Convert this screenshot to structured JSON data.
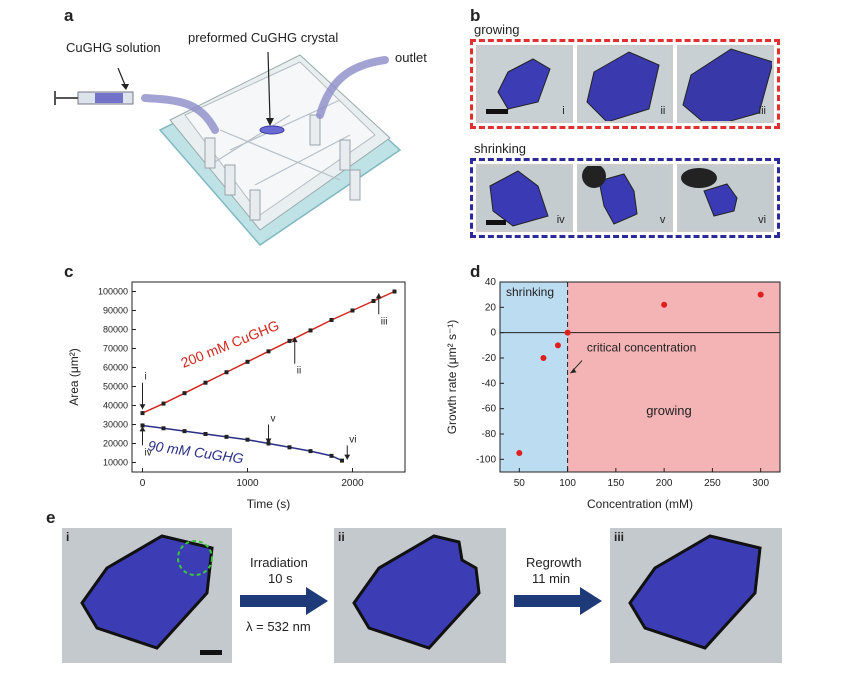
{
  "panels": {
    "a": {
      "label": "a",
      "solution_label": "CuGHG solution",
      "crystal_label": "preformed CuGHG crystal",
      "outlet_label": "outlet"
    },
    "b": {
      "label": "b",
      "growing_label": "growing",
      "shrinking_label": "shrinking",
      "growing_frames": [
        "i",
        "ii",
        "iii"
      ],
      "shrinking_frames": [
        "iv",
        "v",
        "vi"
      ],
      "frame_color_growing": "#e03030",
      "frame_color_shrinking": "#2a2a9a"
    },
    "c": {
      "label": "c"
    },
    "d": {
      "label": "d",
      "shrinking_region": "shrinking",
      "growing_region": "growing",
      "annotation": "critical concentration"
    },
    "e": {
      "label": "e",
      "frames": [
        "i",
        "ii",
        "iii"
      ],
      "step1": {
        "line1": "Irradiation",
        "line2": "10 s",
        "line3": "λ = 532 nm"
      },
      "step2": {
        "line1": "Regrowth",
        "line2": "11 min"
      }
    }
  },
  "colors": {
    "red_series": "#d0281e",
    "blue_series": "#2a2f86",
    "shrinking_bg": "#bcdcf2",
    "growing_bg": "#f4b3b5",
    "arrow": "#1f3a78",
    "crystal": "#3c3cb4"
  },
  "chart_data": [
    {
      "type": "scatter",
      "xlabel": "Time (s)",
      "ylabel": "Area (μm²)",
      "xlim": [
        -100,
        2500
      ],
      "ylim": [
        5000,
        105000
      ],
      "xticks": [
        0,
        1000,
        2000
      ],
      "yticks": [
        10000,
        20000,
        30000,
        40000,
        50000,
        60000,
        70000,
        80000,
        90000,
        100000
      ],
      "series": [
        {
          "name": "200 mM CuGHG",
          "x": [
            0,
            200,
            400,
            600,
            800,
            1000,
            1200,
            1400,
            1600,
            1800,
            2000,
            2200,
            2400
          ],
          "values": [
            36000,
            41000,
            46500,
            52000,
            57500,
            63000,
            68500,
            74000,
            79500,
            85000,
            90000,
            95000,
            100000
          ]
        },
        {
          "name": "90 mM CuGHG",
          "x": [
            0,
            200,
            400,
            600,
            800,
            1000,
            1200,
            1400,
            1600,
            1800,
            1900
          ],
          "values": [
            29500,
            28000,
            26500,
            25000,
            23500,
            22000,
            20000,
            18000,
            16000,
            13500,
            11000
          ]
        }
      ],
      "annotations": [
        {
          "text": "i",
          "x": 0
        },
        {
          "text": "ii",
          "x": 1450
        },
        {
          "text": "iii",
          "x": 2250
        },
        {
          "text": "iv",
          "x": 0
        },
        {
          "text": "v",
          "x": 1200
        },
        {
          "text": "vi",
          "x": 1950
        }
      ]
    },
    {
      "type": "scatter",
      "xlabel": "Concentration (mM)",
      "ylabel": "Growth rate (μm² s⁻¹)",
      "xlim": [
        30,
        320
      ],
      "ylim": [
        -110,
        40
      ],
      "xticks": [
        50,
        100,
        150,
        200,
        250,
        300
      ],
      "yticks": [
        -100,
        -80,
        -60,
        -40,
        -20,
        0,
        20,
        40
      ],
      "grid": false,
      "x": [
        50,
        75,
        90,
        100,
        200,
        300
      ],
      "values": [
        -95,
        -20,
        -10,
        0,
        22,
        30
      ]
    }
  ]
}
